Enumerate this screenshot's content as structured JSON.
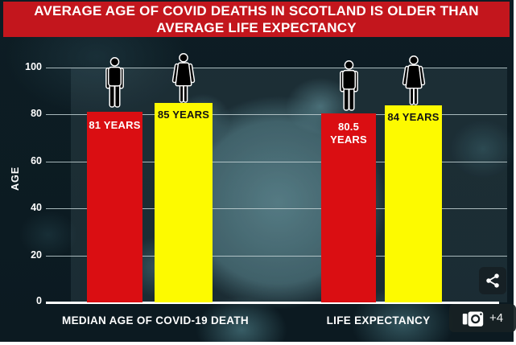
{
  "chart_data": {
    "type": "bar",
    "title": "AVERAGE AGE OF COVID DEATHS IN SCOTLAND IS OLDER THAN AVERAGE LIFE EXPECTANCY",
    "xlabel": "",
    "ylabel": "AGE",
    "ylim": [
      0,
      100
    ],
    "yticks_top_to_bottom": [
      100,
      80,
      60,
      40,
      20,
      0
    ],
    "grid": true,
    "legend_position": "none",
    "categories": [
      "MEDIAN AGE OF COVID-19 DEATH",
      "LIFE EXPECTANCY"
    ],
    "series": [
      {
        "name": "Male",
        "icon": "male-figure",
        "color": "#da0e12",
        "values": [
          81,
          80.5
        ],
        "value_labels": [
          "81 YEARS",
          "80.5 YEARS"
        ]
      },
      {
        "name": "Female",
        "icon": "female-figure",
        "color": "#fdfa00",
        "values": [
          85,
          84
        ],
        "value_labels": [
          "85 YEARS",
          "84 YEARS"
        ]
      }
    ],
    "colors": {
      "banner_background": "#c3161d",
      "chart_background": "#0c1a21",
      "red_bar": "#da0e12",
      "yellow_bar": "#fdfa00",
      "grid_line": "#c3d2d5",
      "axis_line": "#ffffff"
    }
  },
  "overlay": {
    "photo_count": "+4"
  }
}
